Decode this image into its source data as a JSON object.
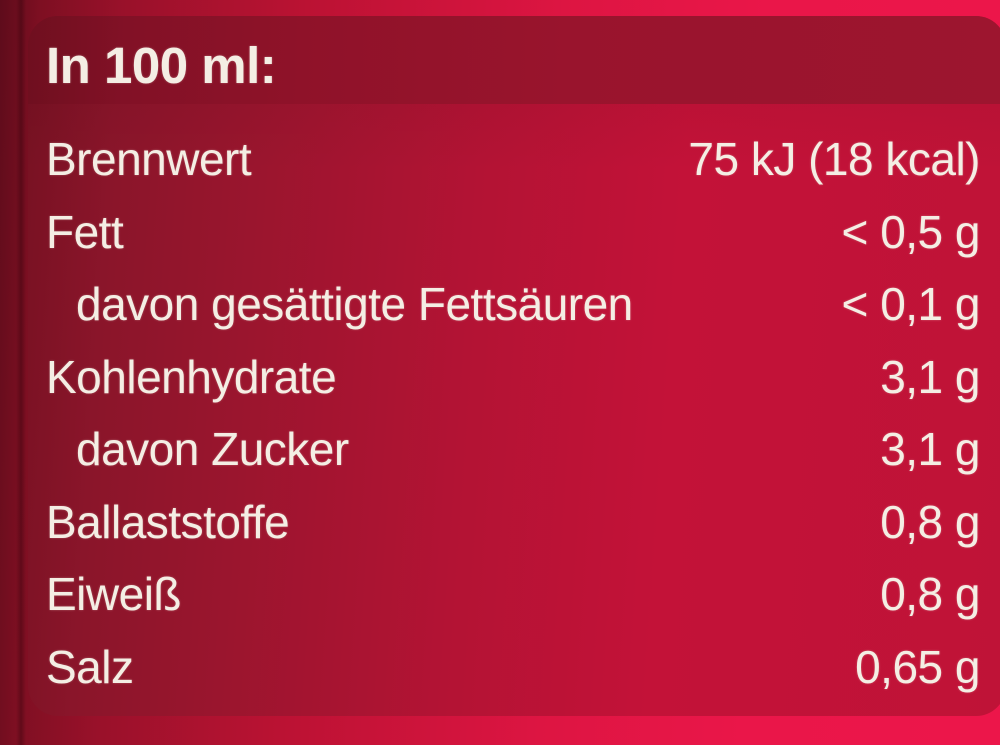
{
  "label": {
    "header": "In 100 ml:",
    "rows": [
      {
        "name": "Brennwert",
        "value": "75 kJ (18 kcal)",
        "indent": false
      },
      {
        "name": "Fett",
        "value": "< 0,5 g",
        "indent": false
      },
      {
        "name": "davon gesättigte Fettsäuren",
        "value": "< 0,1 g",
        "indent": true
      },
      {
        "name": "Kohlenhydrate",
        "value": "3,1 g",
        "indent": false
      },
      {
        "name": "davon Zucker",
        "value": "3,1 g",
        "indent": true
      },
      {
        "name": "Ballaststoffe",
        "value": "0,8 g",
        "indent": false
      },
      {
        "name": "Eiweiß",
        "value": "0,8 g",
        "indent": false
      },
      {
        "name": "Salz",
        "value": "0,65 g",
        "indent": false
      }
    ]
  },
  "colors": {
    "background_bright": "#ec164a",
    "background_dark_edge": "#5e0c1b",
    "panel_body": "#c31238",
    "panel_left": "#8a152a",
    "header_band": "#99142d",
    "text": "#f4eee4"
  }
}
